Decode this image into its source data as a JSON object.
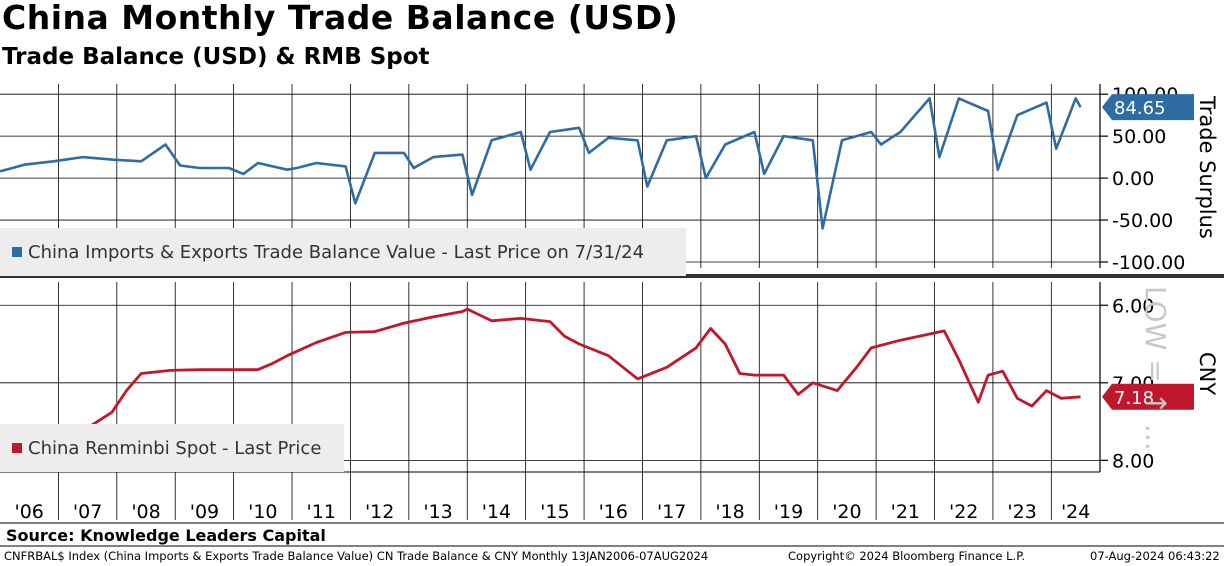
{
  "header": {
    "title": "China Monthly Trade Balance (USD)",
    "subtitle": "Trade Balance (USD) & RMB Spot"
  },
  "footer": {
    "source": "Source: Knowledge Leaders Capital",
    "index_desc": "CNFRBAL$ Index (China Imports & Exports Trade Balance Value) CN Trade Balance & CNY  Monthly 13JAN2006-07AUG2024",
    "copyright": "Copyright© 2024 Bloomberg Finance L.P.",
    "timestamp": "07-Aug-2024 06:43:22"
  },
  "colors": {
    "trade": "#2e6da4",
    "rmb": "#c1172c",
    "legend_bg": "#ededed"
  },
  "chart_data": [
    {
      "type": "line",
      "panel": "top",
      "legend": "China Imports & Exports Trade Balance Value - Last Price on 7/31/24",
      "ylabel": "Trade Surplus",
      "yticks": [
        "100.00",
        "50.00",
        "0.00",
        "-50.00",
        "-100.00"
      ],
      "ylim": [
        -100,
        105
      ],
      "last_value_label": "84.65",
      "last_value": 84.65,
      "grid": true,
      "x": [
        "2006-01",
        "2006-06",
        "2006-12",
        "2007-06",
        "2007-12",
        "2008-06",
        "2008-11",
        "2009-02",
        "2009-06",
        "2009-12",
        "2010-03",
        "2010-06",
        "2010-12",
        "2011-02",
        "2011-06",
        "2011-12",
        "2012-02",
        "2012-06",
        "2012-12",
        "2013-02",
        "2013-06",
        "2013-12",
        "2014-02",
        "2014-06",
        "2014-12",
        "2015-02",
        "2015-06",
        "2015-12",
        "2016-02",
        "2016-06",
        "2016-12",
        "2017-02",
        "2017-06",
        "2017-12",
        "2018-02",
        "2018-06",
        "2018-12",
        "2019-02",
        "2019-06",
        "2019-12",
        "2020-02",
        "2020-06",
        "2020-12",
        "2021-02",
        "2021-06",
        "2021-12",
        "2022-02",
        "2022-06",
        "2022-12",
        "2023-02",
        "2023-06",
        "2023-12",
        "2024-02",
        "2024-06",
        "2024-07"
      ],
      "y": [
        8,
        16,
        20,
        25,
        22,
        20,
        40,
        15,
        12,
        12,
        5,
        18,
        10,
        12,
        18,
        14,
        -30,
        30,
        30,
        12,
        25,
        28,
        -20,
        45,
        55,
        10,
        55,
        60,
        30,
        48,
        45,
        -10,
        45,
        50,
        0,
        40,
        55,
        5,
        50,
        45,
        -60,
        45,
        55,
        40,
        55,
        95,
        25,
        95,
        80,
        10,
        75,
        90,
        35,
        95,
        84.65
      ]
    },
    {
      "type": "line",
      "panel": "bottom",
      "legend": "China Renminbi Spot - Last Price",
      "ylabel": "CNY",
      "yticks": [
        "6.00",
        "7.00",
        "8.00"
      ],
      "ylim_inverted": [
        5.7,
        8.15
      ],
      "last_value_label": "7.18",
      "last_value": 7.18,
      "side_label": "LOW = ↑ ...",
      "grid": true,
      "x": [
        "2006-01",
        "2006-06",
        "2006-12",
        "2007-06",
        "2007-12",
        "2008-03",
        "2008-06",
        "2008-12",
        "2009-06",
        "2010-06",
        "2010-09",
        "2010-12",
        "2011-06",
        "2011-12",
        "2012-06",
        "2012-12",
        "2013-06",
        "2013-12",
        "2014-01",
        "2014-06",
        "2014-12",
        "2015-06",
        "2015-09",
        "2015-12",
        "2016-06",
        "2016-12",
        "2017-06",
        "2017-12",
        "2018-03",
        "2018-06",
        "2018-09",
        "2018-12",
        "2019-06",
        "2019-09",
        "2019-12",
        "2020-05",
        "2020-09",
        "2020-12",
        "2021-06",
        "2021-12",
        "2022-03",
        "2022-06",
        "2022-10",
        "2022-12",
        "2023-03",
        "2023-06",
        "2023-09",
        "2023-12",
        "2024-03",
        "2024-07"
      ],
      "y": [
        8.05,
        7.97,
        7.82,
        7.62,
        7.38,
        7.1,
        6.88,
        6.84,
        6.83,
        6.83,
        6.75,
        6.65,
        6.48,
        6.35,
        6.34,
        6.23,
        6.15,
        6.08,
        6.05,
        6.2,
        6.17,
        6.21,
        6.4,
        6.5,
        6.65,
        6.95,
        6.8,
        6.55,
        6.3,
        6.5,
        6.88,
        6.9,
        6.9,
        7.15,
        7.0,
        7.1,
        6.8,
        6.55,
        6.45,
        6.37,
        6.33,
        6.7,
        7.25,
        6.9,
        6.85,
        7.2,
        7.3,
        7.1,
        7.2,
        7.18
      ]
    }
  ],
  "xaxis": {
    "labels": [
      "'06",
      "'07",
      "'08",
      "'09",
      "'10",
      "'11",
      "'12",
      "'13",
      "'14",
      "'15",
      "'16",
      "'17",
      "'18",
      "'19",
      "'20",
      "'21",
      "'22",
      "'23",
      "'24"
    ]
  }
}
